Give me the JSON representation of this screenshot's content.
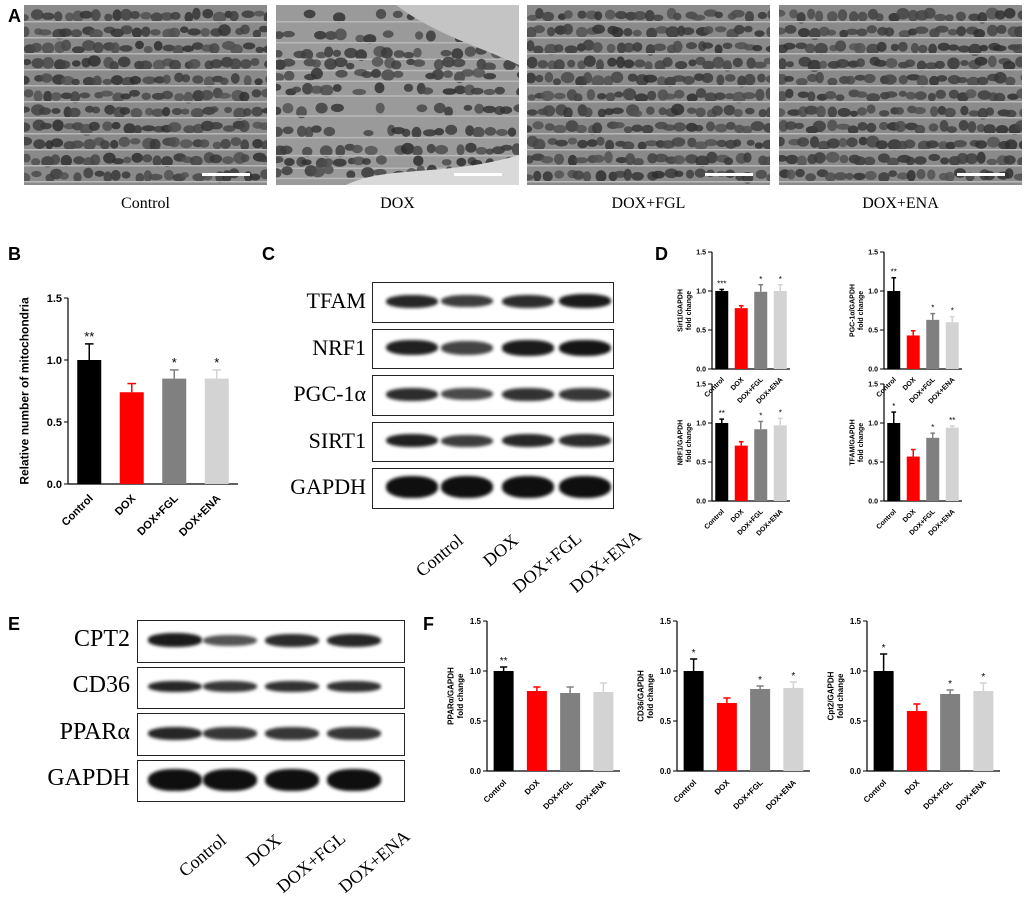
{
  "panels": {
    "A": "A",
    "B": "B",
    "C": "C",
    "D": "D",
    "E": "E",
    "F": "F"
  },
  "panel_a": {
    "labels": [
      "Control",
      "DOX",
      "DOX+FGL",
      "DOX+ENA"
    ]
  },
  "blot_c": {
    "rows": [
      "TFAM",
      "NRF1",
      "PGC-1α",
      "SIRT1",
      "GAPDH"
    ],
    "lanes": [
      "Control",
      "DOX",
      "DOX+FGL",
      "DOX+ENA"
    ]
  },
  "blot_e": {
    "rows": [
      "CPT2",
      "CD36",
      "PPARα",
      "GAPDH"
    ],
    "lanes": [
      "Control",
      "DOX",
      "DOX+FGL",
      "DOX+ENA"
    ]
  },
  "colors": {
    "Control": "#000000",
    "DOX": "#ff0000",
    "DOX+FGL": "#808080",
    "DOX+ENA": "#d3d3d3"
  },
  "chart_data": [
    {
      "id": "B",
      "type": "bar",
      "categories": [
        "Control",
        "DOX",
        "DOX+FGL",
        "DOX+ENA"
      ],
      "values": [
        1.0,
        0.74,
        0.85,
        0.85
      ],
      "errors": [
        0.13,
        0.07,
        0.07,
        0.07
      ],
      "sig": [
        "**",
        "",
        "*",
        "*"
      ],
      "ylabel": "Relative number of mitochondria",
      "ylim": [
        0,
        1.5
      ],
      "yticks": [
        "0.0",
        "0.5",
        "1.0",
        "1.5"
      ]
    },
    {
      "id": "D1",
      "type": "bar",
      "categories": [
        "Control",
        "DOX",
        "DOX+FGL",
        "DOX+ENA"
      ],
      "values": [
        1.0,
        0.78,
        0.99,
        1.0
      ],
      "errors": [
        0.02,
        0.03,
        0.09,
        0.08
      ],
      "sig": [
        "***",
        "",
        "*",
        "*"
      ],
      "ylabel": "Sirt1/GAPDH fold change",
      "ylim": [
        0,
        1.5
      ],
      "yticks": [
        "0.0",
        "0.5",
        "1.0",
        "1.5"
      ]
    },
    {
      "id": "D2",
      "type": "bar",
      "categories": [
        "Control",
        "DOX",
        "DOX+FGL",
        "DOX+ENA"
      ],
      "values": [
        1.0,
        0.43,
        0.63,
        0.6
      ],
      "errors": [
        0.17,
        0.06,
        0.08,
        0.07
      ],
      "sig": [
        "**",
        "",
        "*",
        "*"
      ],
      "ylabel": "PGC-1α/GAPDH fold change",
      "ylim": [
        0,
        1.5
      ],
      "yticks": [
        "0.0",
        "0.5",
        "1.0",
        "1.5"
      ]
    },
    {
      "id": "D3",
      "type": "bar",
      "categories": [
        "Control",
        "DOX",
        "DOX+FGL",
        "DOX+ENA"
      ],
      "values": [
        1.0,
        0.71,
        0.92,
        0.97
      ],
      "errors": [
        0.05,
        0.05,
        0.1,
        0.09
      ],
      "sig": [
        "**",
        "",
        "*",
        "*"
      ],
      "ylabel": "NRF1/GAPDH fold change",
      "ylim": [
        0,
        1.5
      ],
      "yticks": [
        "0.0",
        "0.5",
        "1.0",
        "1.5"
      ]
    },
    {
      "id": "D4",
      "type": "bar",
      "categories": [
        "Control",
        "DOX",
        "DOX+FGL",
        "DOX+ENA"
      ],
      "values": [
        1.0,
        0.57,
        0.81,
        0.94
      ],
      "errors": [
        0.14,
        0.09,
        0.06,
        0.02
      ],
      "sig": [
        "*",
        "",
        "*",
        "**"
      ],
      "ylabel": "TFAM/GAPDH fold change",
      "ylim": [
        0,
        1.5
      ],
      "yticks": [
        "0.0",
        "0.5",
        "1.0",
        "1.5"
      ]
    },
    {
      "id": "F1",
      "type": "bar",
      "categories": [
        "Control",
        "DOX",
        "DOX+FGL",
        "DOX+ENA"
      ],
      "values": [
        1.0,
        0.8,
        0.78,
        0.79
      ],
      "errors": [
        0.04,
        0.04,
        0.06,
        0.09
      ],
      "sig": [
        "**",
        "",
        "",
        ""
      ],
      "ylabel": "PPARα/GAPDH fold change",
      "ylim": [
        0,
        1.5
      ],
      "yticks": [
        "0.0",
        "0.5",
        "1.0",
        "1.5"
      ]
    },
    {
      "id": "F2",
      "type": "bar",
      "categories": [
        "Control",
        "DOX",
        "DOX+FGL",
        "DOX+ENA"
      ],
      "values": [
        1.0,
        0.68,
        0.82,
        0.83
      ],
      "errors": [
        0.12,
        0.05,
        0.03,
        0.06
      ],
      "sig": [
        "*",
        "",
        "*",
        "*"
      ],
      "ylabel": "CD36/GAPDH fold change",
      "ylim": [
        0,
        1.5
      ],
      "yticks": [
        "0.0",
        "0.5",
        "1.0",
        "1.5"
      ]
    },
    {
      "id": "F3",
      "type": "bar",
      "categories": [
        "Control",
        "DOX",
        "DOX+FGL",
        "DOX+ENA"
      ],
      "values": [
        1.0,
        0.6,
        0.77,
        0.8
      ],
      "errors": [
        0.17,
        0.07,
        0.04,
        0.08
      ],
      "sig": [
        "*",
        "",
        "*",
        "*"
      ],
      "ylabel": "Cpt2/GAPDH fold change",
      "ylim": [
        0,
        1.5
      ],
      "yticks": [
        "0.0",
        "0.5",
        "1.0",
        "1.5"
      ]
    }
  ]
}
